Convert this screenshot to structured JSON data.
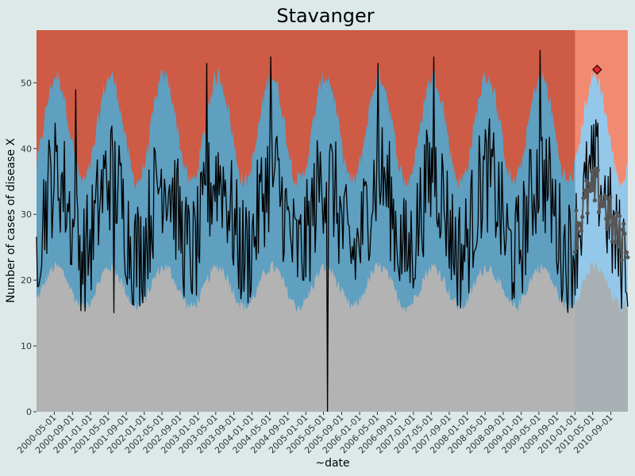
{
  "chart_data": {
    "type": "line",
    "title": "Stavanger",
    "xlabel": "~date",
    "ylabel": "Number of cases of disease X",
    "ylim": [
      0,
      58
    ],
    "y_ticks": [
      0,
      10,
      20,
      30,
      40,
      50
    ],
    "x_tick_labels": [
      "2000-05-01",
      "2000-09-01",
      "2001-01-01",
      "2001-05-01",
      "2001-09-01",
      "2002-01-01",
      "2002-05-01",
      "2002-09-01",
      "2003-01-01",
      "2003-05-01",
      "2003-09-01",
      "2004-01-01",
      "2004-05-01",
      "2004-09-01",
      "2005-01-01",
      "2005-05-01",
      "2005-09-01",
      "2006-01-01",
      "2006-05-01",
      "2006-09-01",
      "2007-01-01",
      "2007-05-01",
      "2007-09-01",
      "2008-01-01",
      "2008-05-01",
      "2008-09-01",
      "2009-01-01",
      "2009-05-01",
      "2009-09-01",
      "2010-01-01",
      "2010-05-01",
      "2010-09-01"
    ],
    "x_range": [
      "2000-01-01",
      "2010-12-31"
    ],
    "forecast_start": "2009-12-28",
    "colors": {
      "background": "#dde9e9",
      "low_band": "#b3b3b3",
      "normal_band": "#5f9fc0",
      "high_band": "#cd5b45",
      "forecast_low_band": "#a8b0b4",
      "forecast_normal_band": "#94c8ea",
      "forecast_high_band": "#f18a70",
      "observed_line": "#000000",
      "forecast_line": "#555555",
      "alert_marker": "#e8202a"
    },
    "band_model": {
      "lower_mean": 19,
      "lower_amp": 3,
      "upper_mean": 43,
      "upper_amp": 8,
      "description": "seasonal thresholds peaking around May"
    },
    "series": [
      {
        "role": "observed",
        "x_start": "2000-01-01",
        "x_end": "2010-12-31",
        "interval_days": 7,
        "baseline_mean": 30,
        "seasonal_amplitude": 6,
        "notable_points": [
          {
            "x": "2000-09-25",
            "y": 49
          },
          {
            "x": "2001-06-11",
            "y": 15
          },
          {
            "x": "2003-03-03",
            "y": 53
          },
          {
            "x": "2004-05-10",
            "y": 54
          },
          {
            "x": "2005-05-30",
            "y": 0
          },
          {
            "x": "2006-05-08",
            "y": 53
          },
          {
            "x": "2007-05-21",
            "y": 54
          },
          {
            "x": "2009-05-11",
            "y": 55
          },
          {
            "x": "2010-12-27",
            "y": 16
          }
        ]
      },
      {
        "role": "alert",
        "points": [
          {
            "x": "2010-05-31",
            "y": 52
          }
        ]
      }
    ]
  }
}
